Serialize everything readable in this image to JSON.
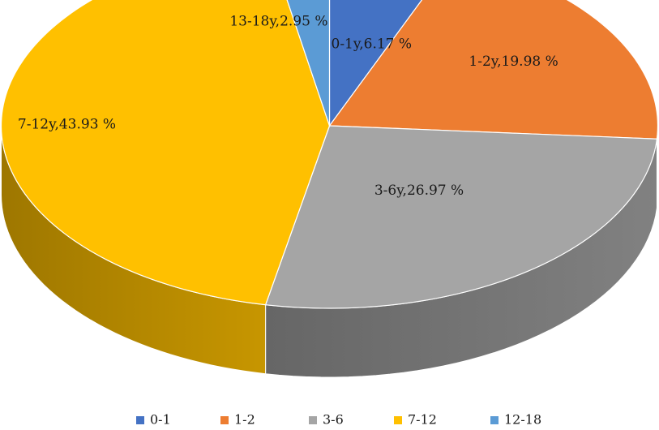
{
  "chart_data": {
    "type": "pie",
    "style": "3d",
    "title": "",
    "legend_position": "bottom",
    "slices": [
      {
        "legend": "0-1",
        "label": "0-1y,6.17 %",
        "value": 6.17,
        "color": "#4472C4"
      },
      {
        "legend": "1-2",
        "label": "1-2y,19.98 %",
        "value": 19.98,
        "color": "#ED7D31"
      },
      {
        "legend": "3-6",
        "label": "3-6y,26.97 %",
        "value": 26.97,
        "color": "#A5A5A5"
      },
      {
        "legend": "7-12",
        "label": "7-12y,43.93 %",
        "value": 43.93,
        "color": "#FFC000"
      },
      {
        "legend": "12-18",
        "label": "13-18y,2.95 %",
        "value": 2.95,
        "color": "#5B9BD5"
      }
    ]
  }
}
